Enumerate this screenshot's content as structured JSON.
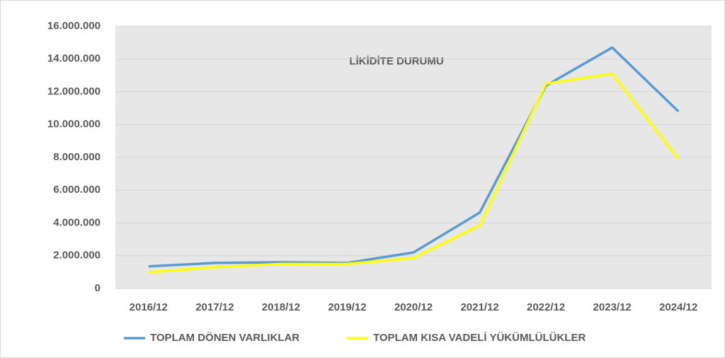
{
  "chart_data": {
    "type": "line",
    "title": "LİKİDİTE DURUMU",
    "categories": [
      "2016/12",
      "2017/12",
      "2018/12",
      "2019/12",
      "2020/12",
      "2021/12",
      "2022/12",
      "2023/12",
      "2024/12"
    ],
    "series": [
      {
        "name": "TOPLAM DÖNEN VARLIKLAR",
        "color": "#5b9bd5",
        "values": [
          1350000,
          1560000,
          1600000,
          1560000,
          2200000,
          4630000,
          12380000,
          14700000,
          10800000
        ]
      },
      {
        "name": "TOPLAM KISA VADELİ YÜKÜMLÜLÜKLER",
        "color": "#ffff00",
        "values": [
          1000000,
          1300000,
          1500000,
          1500000,
          1860000,
          3850000,
          12500000,
          13100000,
          7900000
        ]
      }
    ],
    "ylim": [
      0,
      16000000
    ],
    "yticks": [
      0,
      {
        "value": 2000000,
        "label": "2.000.000"
      },
      {
        "value": 4000000,
        "label": "4.000.000"
      },
      {
        "value": 6000000,
        "label": "6.000.000"
      },
      {
        "value": 8000000,
        "label": "8.000.000"
      },
      {
        "value": 10000000,
        "label": "10.000.000"
      },
      {
        "value": 12000000,
        "label": "12.000.000"
      },
      {
        "value": 14000000,
        "label": "14.000.000"
      },
      {
        "value": 16000000,
        "label": "16.000.000"
      }
    ],
    "grid": true,
    "legend": "bottom"
  }
}
